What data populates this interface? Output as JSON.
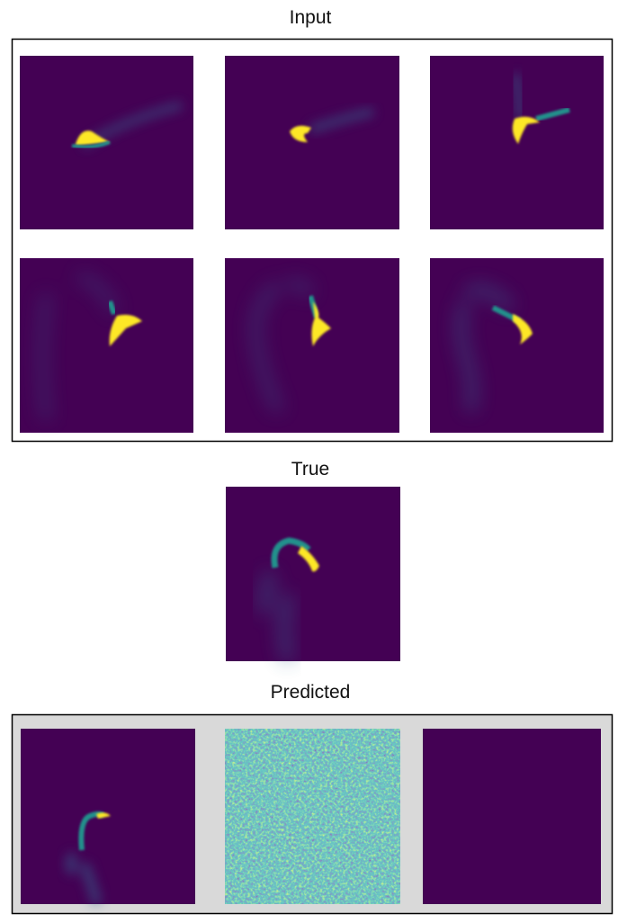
{
  "input": {
    "title": "Input"
  },
  "true": {
    "title": "True"
  },
  "predicted": {
    "title": "Predicted"
  }
}
